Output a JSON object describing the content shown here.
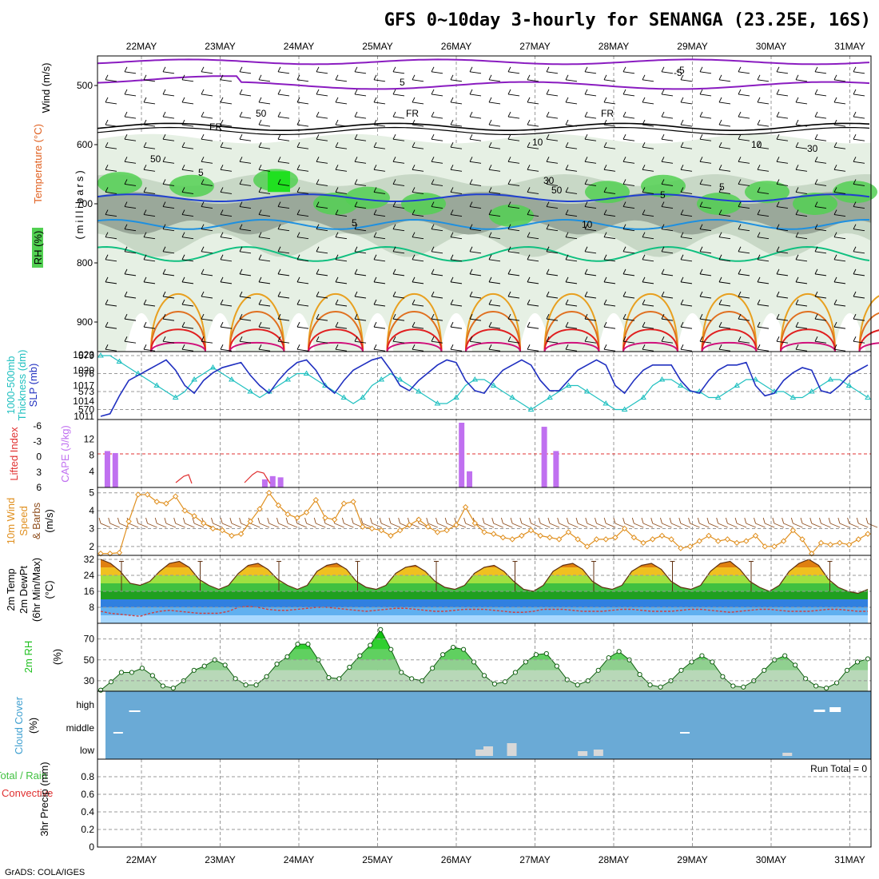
{
  "title": "GFS 0~10day 3-hourly for SENANGA (23.25E, 16S)",
  "credit": "GrADS: COLA/IGES",
  "dates": [
    "22MAY",
    "23MAY",
    "24MAY",
    "25MAY",
    "26MAY",
    "27MAY",
    "28MAY",
    "29MAY",
    "30MAY",
    "31MAY"
  ],
  "colors": {
    "temp_purple": "#8a1cc0",
    "temp_blue": "#2040d0",
    "temp_lightblue": "#1e90e0",
    "temp_green": "#10c080",
    "temp_orange": "#e8a020",
    "temp_darkorange": "#e07020",
    "temp_red": "#e02020",
    "temp_magenta": "#d0107a",
    "rh_light": "#e6f0e4",
    "rh_mid": "#c8d8c6",
    "rh_dark": "#9aa89a",
    "rh_green": "#52d052",
    "thickness": "#20c0c0",
    "slp": "#2030c0",
    "cape": "#c070f0",
    "li": "#e03030",
    "wind": "#e09020",
    "barb": "#905020",
    "rh2m": "#20c020",
    "cloud": "#6aaad6",
    "dewpt": "#d04040"
  },
  "panels": {
    "upper": {
      "ylabel": "(millibars)",
      "side_labels": [
        "Wind (m/s)",
        "Temperature (°C)",
        "RH (%)"
      ],
      "ticks": [
        "500",
        "600",
        "700",
        "800",
        "900"
      ],
      "contour_labels": [
        "5",
        "-5",
        "FR",
        "FR",
        "FR",
        "50",
        "30",
        "50",
        "50",
        "30",
        "5",
        "5",
        "10",
        "10",
        "10",
        "-5",
        "5",
        "5"
      ]
    },
    "slp": {
      "left_ticks": [
        "579",
        "576",
        "573",
        "570"
      ],
      "right_ticks": [
        "1023",
        "1020",
        "1017",
        "1014",
        "1011"
      ],
      "labels": [
        "1000-500mb",
        "Thickness (dm)",
        "SLP (mb)"
      ]
    },
    "cape": {
      "left_ticks": [
        "-6",
        "-3",
        "0",
        "3",
        "6"
      ],
      "right_ticks": [
        "12",
        "8",
        "4"
      ],
      "labels": [
        "Lifted Index",
        "CAPE (J/kg)"
      ]
    },
    "wind": {
      "ticks": [
        "5",
        "4",
        "3",
        "2"
      ],
      "labels": [
        "10m Wind",
        "Speed",
        "& Barbs",
        "(m/s)"
      ]
    },
    "temp": {
      "ticks": [
        "32",
        "24",
        "16",
        "8"
      ],
      "labels": [
        "2m Temp",
        "2m DewPt",
        "(6hr Min/Max)",
        "(°C)"
      ]
    },
    "rh2m": {
      "ticks": [
        "70",
        "50",
        "30"
      ],
      "labels": [
        "2m RH",
        "(%)"
      ]
    },
    "cloud": {
      "ticks": [
        "high",
        "middle",
        "low"
      ],
      "labels": [
        "Cloud Cover",
        "(%)"
      ]
    },
    "precip": {
      "ticks": [
        "0.8",
        "0.6",
        "0.4",
        "0.2",
        "0"
      ],
      "labels": [
        "Total / Rain",
        "Convective",
        "3hr Precip (mm)"
      ],
      "run_total": "Run Total = 0"
    }
  },
  "chart_data": [
    {
      "type": "line",
      "title": "1000-500mb Thickness (dm) / SLP (mb)",
      "series": [
        {
          "name": "1000-500mb Thickness (dm)",
          "ylim": [
            569,
            579
          ],
          "values": [
            579,
            579,
            578,
            577,
            576,
            575,
            574,
            573,
            572,
            573,
            575,
            576,
            577,
            576,
            575,
            574,
            573,
            572,
            573,
            574,
            575,
            576,
            576,
            575,
            574,
            573,
            572,
            571,
            572,
            574,
            575,
            576,
            575,
            574,
            573,
            572,
            571,
            571,
            572,
            574,
            575,
            575,
            574,
            573,
            572,
            571,
            570,
            571,
            572,
            573,
            574,
            574,
            573,
            572,
            571,
            570,
            570,
            571,
            572,
            574,
            575,
            575,
            574,
            573,
            573,
            572,
            572,
            573,
            574,
            575,
            575,
            574,
            573,
            573,
            572,
            572,
            573,
            574,
            575,
            575,
            574,
            573,
            572
          ]
        },
        {
          "name": "SLP (mb)",
          "ylim": [
            1011,
            1023
          ],
          "values": [
            1011,
            1011.5,
            1015,
            1018,
            1019,
            1020,
            1021,
            1022,
            1020,
            1017,
            1015.5,
            1018,
            1019.5,
            1020.5,
            1021,
            1021.5,
            1019,
            1017,
            1015.5,
            1018,
            1020,
            1021.5,
            1022,
            1020,
            1017,
            1015.5,
            1018,
            1020,
            1021,
            1022,
            1022.5,
            1020,
            1017,
            1016,
            1018,
            1019.5,
            1021,
            1022,
            1021.5,
            1018,
            1016,
            1015.5,
            1018,
            1020,
            1021,
            1022,
            1021,
            1018,
            1016,
            1016,
            1018,
            1020,
            1021,
            1022,
            1021,
            1017,
            1015.5,
            1018,
            1020,
            1021,
            1021,
            1021,
            1018,
            1016,
            1015.5,
            1018,
            1020,
            1021,
            1021,
            1021.5,
            1017,
            1015,
            1015.5,
            1018,
            1019.5,
            1020.5,
            1020,
            1016,
            1015.5,
            1017,
            1019,
            1020,
            1021
          ]
        }
      ]
    },
    {
      "type": "bar",
      "title": "Lifted Index / CAPE (J/kg)",
      "ylim": [
        0,
        14
      ],
      "cape_values": [
        [
          0.05,
          9
        ],
        [
          0.15,
          8.5
        ],
        [
          2.05,
          2
        ],
        [
          2.25,
          2.5
        ],
        [
          2.15,
          2.8
        ],
        [
          4.55,
          16
        ],
        [
          4.65,
          4
        ],
        [
          5.6,
          15
        ],
        [
          5.75,
          9
        ]
      ],
      "li_values": [
        [
          2.3,
          4.8
        ],
        [
          2.5,
          3.5
        ],
        [
          3.2,
          5
        ],
        [
          3.4,
          4.2
        ],
        [
          3.6,
          3.5
        ],
        [
          3.75,
          5
        ]
      ]
    },
    {
      "type": "line",
      "title": "10m Wind Speed (m/s)",
      "ylim": [
        1.5,
        5.3
      ],
      "values": [
        1.6,
        1.6,
        1.65,
        3.4,
        4.9,
        4.9,
        4.5,
        4.4,
        4.8,
        4.0,
        3.7,
        3.3,
        3.0,
        2.9,
        2.6,
        2.7,
        3.4,
        4.1,
        5.0,
        4.3,
        3.8,
        3.6,
        3.9,
        4.6,
        3.6,
        3.5,
        4.4,
        4.5,
        3.1,
        3.0,
        2.9,
        2.6,
        2.9,
        3.2,
        3.5,
        3.1,
        2.8,
        2.9,
        3.2,
        4.2,
        3.3,
        2.8,
        2.7,
        2.5,
        2.4,
        2.6,
        2.9,
        2.6,
        2.5,
        2.4,
        2.8,
        2.4,
        2.0,
        2.4,
        2.4,
        2.5,
        3.0,
        2.5,
        2.2,
        2.4,
        2.6,
        2.4,
        1.9,
        2.0,
        2.3,
        2.6,
        2.3,
        2.4,
        2.2,
        2.3,
        2.6,
        2.0,
        2.0,
        2.3,
        2.9,
        2.4,
        1.6,
        2.2,
        2.1,
        2.2,
        2.1,
        2.4,
        2.7
      ]
    },
    {
      "type": "area",
      "title": "2m Temp / 2m DewPt (°C)",
      "ylim": [
        0,
        34
      ],
      "temp_values": [
        32,
        30,
        26,
        20,
        19,
        21,
        26,
        30,
        31,
        28,
        22,
        19,
        17,
        19,
        25,
        29,
        30,
        27,
        22,
        19,
        17,
        19,
        26,
        29,
        30,
        27,
        21,
        18,
        17,
        19,
        25,
        28,
        29,
        26,
        21,
        18,
        17,
        19,
        25,
        28,
        29,
        26,
        21,
        17,
        16,
        19,
        26,
        29,
        30,
        27,
        21,
        18,
        17,
        19,
        26,
        29,
        30,
        27,
        21,
        18,
        17,
        19,
        26,
        30,
        31,
        27,
        21,
        18,
        16,
        19,
        26,
        30,
        32,
        29,
        22,
        18,
        16,
        15,
        17
      ],
      "dewpt_values": [
        6,
        5,
        4.5,
        4,
        3.5,
        5,
        6,
        6.5,
        6,
        5.5,
        5,
        5,
        5,
        6,
        8,
        8.5,
        8,
        7,
        6.5,
        6.5,
        7,
        7.5,
        8,
        8,
        7.5,
        7,
        6.5,
        6,
        6.5,
        7,
        7.5,
        7.5,
        7,
        6.5,
        6,
        6,
        6.5,
        7,
        7,
        7,
        6.5,
        6,
        5.5,
        5.5,
        6,
        7,
        7,
        7,
        6.5,
        6,
        6,
        6,
        6.5,
        7,
        7,
        6.5,
        6,
        6,
        6,
        6.5,
        7,
        7,
        6.5,
        6,
        5.5,
        6,
        6.5,
        7,
        7,
        6.5,
        6,
        6,
        6,
        6.5,
        7,
        7,
        6.5,
        6,
        6
      ]
    },
    {
      "type": "area",
      "title": "2m RH (%)",
      "ylim": [
        20,
        85
      ],
      "values": [
        21,
        29,
        38,
        38,
        42,
        35,
        25,
        23,
        30,
        40,
        44,
        50,
        45,
        32,
        26,
        26,
        34,
        46,
        53,
        65,
        65,
        50,
        33,
        32,
        43,
        54,
        64,
        79,
        60,
        38,
        32,
        30,
        42,
        55,
        62,
        60,
        48,
        35,
        27,
        29,
        38,
        48,
        55,
        56,
        44,
        31,
        26,
        30,
        40,
        52,
        58,
        50,
        36,
        26,
        24,
        30,
        40,
        48,
        54,
        48,
        34,
        25,
        24,
        30,
        40,
        50,
        54,
        45,
        32,
        25,
        23,
        28,
        40,
        48,
        51
      ]
    },
    {
      "type": "bar",
      "title": "Cloud Cover (%)",
      "low": [
        [
          4.6,
          2
        ],
        [
          4.7,
          3
        ],
        [
          5.0,
          4
        ],
        [
          5.9,
          1.5
        ],
        [
          6.1,
          2
        ],
        [
          8.5,
          1
        ]
      ],
      "middle": [
        [
          0.1,
          1
        ],
        [
          7.3,
          1
        ]
      ],
      "high": [
        [
          0.3,
          1
        ],
        [
          9.0,
          1.5
        ],
        [
          9.2,
          3
        ]
      ]
    },
    {
      "type": "bar",
      "title": "3hr Precip (mm)",
      "ylim": [
        0,
        1
      ],
      "values": []
    }
  ]
}
